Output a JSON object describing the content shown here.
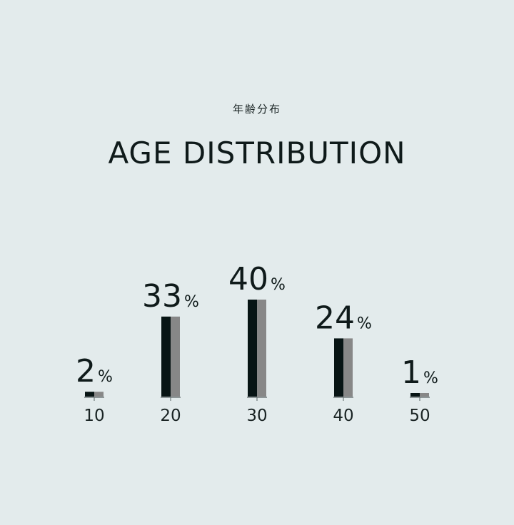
{
  "header": {
    "subtitle_jp": "年齢分布",
    "title": "AGE DISTRIBUTION"
  },
  "chart_data": {
    "type": "bar",
    "categories": [
      "10",
      "20",
      "30",
      "40",
      "50"
    ],
    "values": [
      2,
      33,
      40,
      24,
      1
    ],
    "value_suffix": "%",
    "title": "AGE DISTRIBUTION",
    "xlabel": "",
    "ylabel": "",
    "ylim": [
      0,
      40
    ],
    "grid": false,
    "colors": {
      "bar_dark": "#071414",
      "bar_light": "#878787",
      "baseline": "#5a6464",
      "text": "#0f1a1a"
    }
  }
}
